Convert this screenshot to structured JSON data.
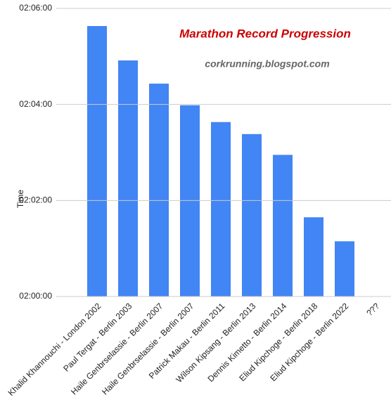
{
  "chart_data": {
    "type": "bar",
    "title": "Marathon Record Progression",
    "subtitle": "corkrunning.blogspot.com",
    "y_label": "Time",
    "categories": [
      "Khalid Khannouchi - London 2002",
      "Paul Tergat - Berlin 2003",
      "Haile Genbrselassie - Berlin 2007",
      "Haile Genbrselassie - Berlin 2007",
      "Patrick Makau - Berlin 2011",
      "Wilson Kipsang - Berlin 2013",
      "Dennis Kimetto - Berlin 2014",
      "Eliud Kipchoge - Berlin 2018",
      "Eliud Kipchoge - Berlin 2022",
      "???"
    ],
    "values": [
      7538,
      7495,
      7466,
      7439,
      7418,
      7403,
      7377,
      7299,
      7269,
      null
    ],
    "color": "#4285f4",
    "ylim": [
      7200,
      7560
    ],
    "yticks": [
      {
        "value": 7200,
        "label": "02:00:00"
      },
      {
        "value": 7320,
        "label": "02:02:00"
      },
      {
        "value": 7440,
        "label": "02:04:00"
      },
      {
        "value": 7560,
        "label": "02:06:00"
      }
    ],
    "grid": true
  }
}
